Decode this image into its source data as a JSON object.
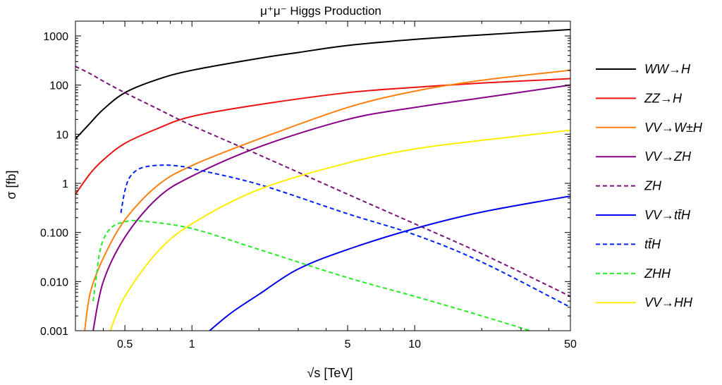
{
  "chart_data": {
    "type": "line",
    "title": "μ⁺μ⁻ Higgs Production",
    "xlabel": "√s [TeV]",
    "ylabel": "σ [fb]",
    "x_scale": "log",
    "y_scale": "log",
    "xlim": [
      0.3,
      50
    ],
    "ylim": [
      0.001,
      2000
    ],
    "x_ticks": [
      {
        "value": 0.5,
        "label": "0.5"
      },
      {
        "value": 1,
        "label": "1"
      },
      {
        "value": 5,
        "label": "5"
      },
      {
        "value": 10,
        "label": "10"
      },
      {
        "value": 50,
        "label": "50"
      }
    ],
    "y_ticks": [
      {
        "value": 0.001,
        "label": "0.001"
      },
      {
        "value": 0.01,
        "label": "0.010"
      },
      {
        "value": 0.1,
        "label": "0.100"
      },
      {
        "value": 1,
        "label": "1"
      },
      {
        "value": 10,
        "label": "10"
      },
      {
        "value": 100,
        "label": "100"
      },
      {
        "value": 1000,
        "label": "1000"
      }
    ],
    "grid": false,
    "legend_position": "right",
    "series": [
      {
        "name": "WW→H",
        "color": "#000000",
        "dash": "solid",
        "points": [
          [
            0.3,
            8
          ],
          [
            0.35,
            17
          ],
          [
            0.4,
            32
          ],
          [
            0.5,
            70
          ],
          [
            0.7,
            130
          ],
          [
            1,
            200
          ],
          [
            2,
            350
          ],
          [
            3,
            460
          ],
          [
            5,
            640
          ],
          [
            10,
            850
          ],
          [
            20,
            1050
          ],
          [
            50,
            1350
          ]
        ]
      },
      {
        "name": "ZZ→H",
        "color": "#ee1111",
        "dash": "solid",
        "points": [
          [
            0.3,
            0.6
          ],
          [
            0.35,
            1.6
          ],
          [
            0.4,
            3
          ],
          [
            0.5,
            6.5
          ],
          [
            0.7,
            13
          ],
          [
            1,
            23
          ],
          [
            2,
            40
          ],
          [
            5,
            70
          ],
          [
            10,
            90
          ],
          [
            20,
            110
          ],
          [
            50,
            135
          ]
        ]
      },
      {
        "name": "VV→W±H",
        "color": "#ff8010",
        "dash": "solid",
        "points": [
          [
            0.33,
            0.001
          ],
          [
            0.35,
            0.006
          ],
          [
            0.4,
            0.03
          ],
          [
            0.5,
            0.18
          ],
          [
            0.7,
            0.9
          ],
          [
            1,
            2.3
          ],
          [
            2,
            8
          ],
          [
            5,
            35
          ],
          [
            10,
            75
          ],
          [
            20,
            125
          ],
          [
            50,
            200
          ]
        ]
      },
      {
        "name": "VV→ZH",
        "color": "#880088",
        "dash": "solid",
        "points": [
          [
            0.36,
            0.001
          ],
          [
            0.4,
            0.01
          ],
          [
            0.5,
            0.08
          ],
          [
            0.7,
            0.5
          ],
          [
            1,
            1.4
          ],
          [
            2,
            5.5
          ],
          [
            5,
            20
          ],
          [
            10,
            35
          ],
          [
            20,
            55
          ],
          [
            50,
            100
          ]
        ]
      },
      {
        "name": "ZH",
        "color": "#7a147a",
        "dash": "dashed",
        "points": [
          [
            0.3,
            240
          ],
          [
            0.35,
            170
          ],
          [
            0.4,
            120
          ],
          [
            0.5,
            70
          ],
          [
            0.7,
            33
          ],
          [
            1,
            15
          ],
          [
            2,
            3.8
          ],
          [
            5,
            0.6
          ],
          [
            10,
            0.15
          ],
          [
            20,
            0.037
          ],
          [
            50,
            0.005
          ]
        ]
      },
      {
        "name": "VV→tt̄H",
        "color": "#0000ee",
        "dash": "solid",
        "points": [
          [
            1.2,
            0.001
          ],
          [
            1.5,
            0.0023
          ],
          [
            2,
            0.0055
          ],
          [
            3,
            0.018
          ],
          [
            5,
            0.045
          ],
          [
            10,
            0.12
          ],
          [
            20,
            0.26
          ],
          [
            50,
            0.55
          ]
        ]
      },
      {
        "name": "tt̄H",
        "color": "#0022ff",
        "dash": "dashed",
        "points": [
          [
            0.48,
            0.25
          ],
          [
            0.5,
            0.7
          ],
          [
            0.53,
            1.4
          ],
          [
            0.6,
            2.1
          ],
          [
            0.75,
            2.35
          ],
          [
            0.9,
            2.2
          ],
          [
            1,
            2.0
          ],
          [
            2,
            0.95
          ],
          [
            5,
            0.24
          ],
          [
            10,
            0.09
          ],
          [
            20,
            0.025
          ],
          [
            50,
            0.003
          ]
        ]
      },
      {
        "name": "ZHH",
        "color": "#22ee22",
        "dash": "dashed",
        "points": [
          [
            0.36,
            0.004
          ],
          [
            0.37,
            0.01
          ],
          [
            0.39,
            0.05
          ],
          [
            0.43,
            0.12
          ],
          [
            0.5,
            0.165
          ],
          [
            0.6,
            0.17
          ],
          [
            1,
            0.12
          ],
          [
            2,
            0.045
          ],
          [
            5,
            0.012
          ],
          [
            10,
            0.005
          ],
          [
            20,
            0.002
          ],
          [
            33,
            0.001
          ]
        ]
      },
      {
        "name": "VV→HH",
        "color": "#ffee00",
        "dash": "solid",
        "points": [
          [
            0.43,
            0.001
          ],
          [
            0.5,
            0.005
          ],
          [
            0.7,
            0.04
          ],
          [
            1,
            0.15
          ],
          [
            2,
            0.75
          ],
          [
            5,
            2.6
          ],
          [
            10,
            5
          ],
          [
            20,
            7.5
          ],
          [
            50,
            12
          ]
        ]
      }
    ]
  }
}
